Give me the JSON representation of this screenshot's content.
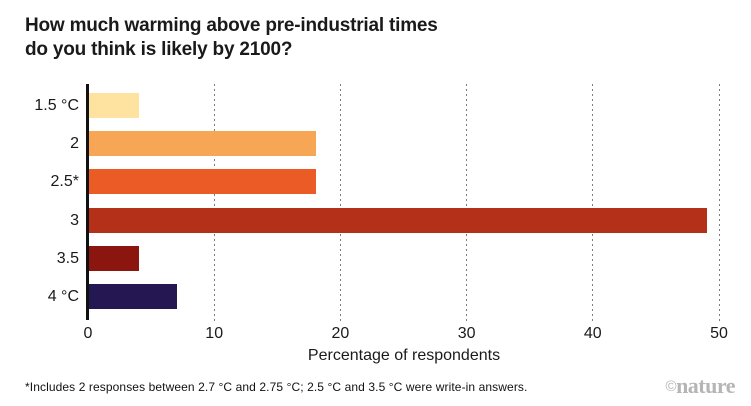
{
  "title": {
    "line1": "How much warming above pre-industrial times",
    "line2": "do you think is likely by 2100?"
  },
  "chart_data": {
    "type": "bar",
    "orientation": "horizontal",
    "title": "How much warming above pre-industrial times do you think is likely by 2100?",
    "categories": [
      "1.5 °C",
      "2",
      "2.5*",
      "3",
      "3.5",
      "4 °C"
    ],
    "values": [
      4,
      18,
      18,
      49,
      4,
      7
    ],
    "bar_colors": [
      "#FDE2A0",
      "#F6A654",
      "#EA5B25",
      "#B43019",
      "#8B160F",
      "#251852"
    ],
    "xlabel": "Percentage of respondents",
    "ylabel": "",
    "xlim": [
      0,
      50
    ],
    "xticks": [
      0,
      10,
      20,
      30,
      40,
      50
    ],
    "grid": "dotted vertical gridlines at x ticks",
    "legend": "none"
  },
  "footnote": "*Includes 2 responses between 2.7 °C and 2.75 °C; 2.5 °C and 3.5 °C were write-in answers.",
  "brand": {
    "copyright": "©",
    "name": "nature"
  },
  "colors": {
    "background": "#ffffff",
    "axis": "#111111",
    "gridline": "#7d7d7d",
    "text": "#1a1a1a",
    "brand_gray": "#b5b5b5"
  }
}
